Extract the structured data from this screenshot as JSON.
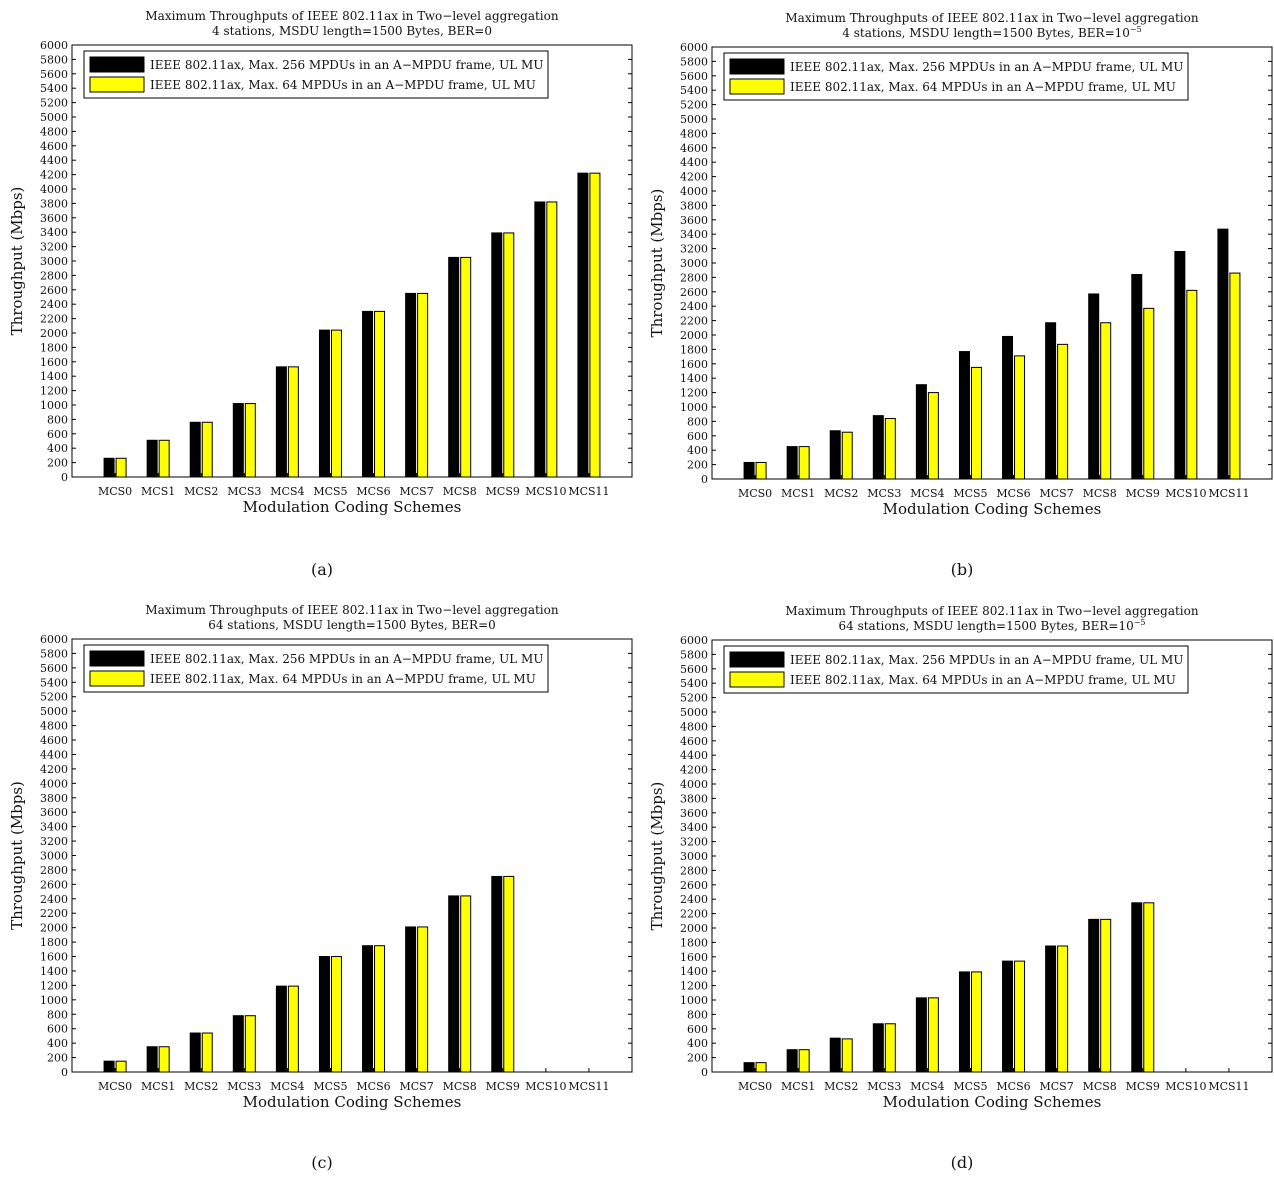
{
  "figure_label": "Maximum Throughputs of IEEE 802.11ax in Two-level aggregation figure",
  "colors": {
    "series_256": "#000000",
    "series_64": "#ffff00",
    "axes": "#000000",
    "background": "#ffffff"
  },
  "chart_data": [
    {
      "type": "bar",
      "panel": "a",
      "caption": "(a)",
      "title": "Maximum Throughputs of IEEE 802.11ax in Two−level aggregation",
      "subtitle": "4 stations, MSDU length=1500 Bytes, BER=0",
      "xlabel": "Modulation Coding Schemes",
      "ylabel": "Throughput (Mbps)",
      "ylim": [
        0,
        6000
      ],
      "yticks": [
        0,
        200,
        400,
        600,
        800,
        1000,
        1200,
        1400,
        1600,
        1800,
        2000,
        2200,
        2400,
        2600,
        2800,
        3000,
        3200,
        3400,
        3600,
        3800,
        4000,
        4200,
        4400,
        4600,
        4800,
        5000,
        5200,
        5400,
        5600,
        5800,
        6000
      ],
      "categories": [
        "MCS0",
        "MCS1",
        "MCS2",
        "MCS3",
        "MCS4",
        "MCS5",
        "MCS6",
        "MCS7",
        "MCS8",
        "MCS9",
        "MCS10",
        "MCS11"
      ],
      "legend_position": "top-left",
      "grid": false,
      "series": [
        {
          "name": "IEEE 802.11ax, Max. 256 MPDUs in an A−MPDU frame, UL MU",
          "color": "#000000",
          "values": [
            260,
            510,
            760,
            1020,
            1530,
            2040,
            2300,
            2550,
            3050,
            3390,
            3820,
            4220
          ]
        },
        {
          "name": "IEEE 802.11ax, Max. 64 MPDUs in an A−MPDU frame, UL MU",
          "color": "#ffff00",
          "values": [
            260,
            510,
            760,
            1020,
            1530,
            2040,
            2300,
            2550,
            3050,
            3390,
            3820,
            4220
          ]
        }
      ]
    },
    {
      "type": "bar",
      "panel": "b",
      "caption": "(b)",
      "title": "Maximum Throughputs of IEEE 802.11ax in Two−level aggregation",
      "subtitle": "4 stations, MSDU length=1500 Bytes, BER=10",
      "subtitle_sup": "−5",
      "xlabel": "Modulation Coding Schemes",
      "ylabel": "Throughput (Mbps)",
      "ylim": [
        0,
        6000
      ],
      "yticks": [
        0,
        200,
        400,
        600,
        800,
        1000,
        1200,
        1400,
        1600,
        1800,
        2000,
        2200,
        2400,
        2600,
        2800,
        3000,
        3200,
        3400,
        3600,
        3800,
        4000,
        4200,
        4400,
        4600,
        4800,
        5000,
        5200,
        5400,
        5600,
        5800,
        6000
      ],
      "categories": [
        "MCS0",
        "MCS1",
        "MCS2",
        "MCS3",
        "MCS4",
        "MCS5",
        "MCS6",
        "MCS7",
        "MCS8",
        "MCS9",
        "MCS10",
        "MCS11"
      ],
      "legend_position": "top-left",
      "grid": false,
      "series": [
        {
          "name": "IEEE 802.11ax, Max. 256 MPDUs in an A−MPDU frame, UL MU",
          "color": "#000000",
          "values": [
            230,
            450,
            670,
            880,
            1310,
            1770,
            1980,
            2170,
            2570,
            2840,
            3160,
            3470
          ]
        },
        {
          "name": "IEEE 802.11ax, Max. 64 MPDUs in an A−MPDU frame, UL MU",
          "color": "#ffff00",
          "values": [
            230,
            450,
            650,
            840,
            1200,
            1550,
            1710,
            1870,
            2170,
            2370,
            2620,
            2860
          ]
        }
      ]
    },
    {
      "type": "bar",
      "panel": "c",
      "caption": "(c)",
      "title": "Maximum Throughputs of IEEE 802.11ax in Two−level aggregation",
      "subtitle": "64 stations, MSDU length=1500 Bytes, BER=0",
      "xlabel": "Modulation Coding Schemes",
      "ylabel": "Throughput (Mbps)",
      "ylim": [
        0,
        6000
      ],
      "yticks": [
        0,
        200,
        400,
        600,
        800,
        1000,
        1200,
        1400,
        1600,
        1800,
        2000,
        2200,
        2400,
        2600,
        2800,
        3000,
        3200,
        3400,
        3600,
        3800,
        4000,
        4200,
        4400,
        4600,
        4800,
        5000,
        5200,
        5400,
        5600,
        5800,
        6000
      ],
      "categories": [
        "MCS0",
        "MCS1",
        "MCS2",
        "MCS3",
        "MCS4",
        "MCS5",
        "MCS6",
        "MCS7",
        "MCS8",
        "MCS9",
        "MCS10",
        "MCS11"
      ],
      "legend_position": "top-left",
      "grid": false,
      "series": [
        {
          "name": "IEEE 802.11ax, Max. 256 MPDUs in an A−MPDU frame, UL MU",
          "color": "#000000",
          "values": [
            150,
            350,
            540,
            780,
            1190,
            1600,
            1750,
            2010,
            2440,
            2710,
            null,
            null
          ]
        },
        {
          "name": "IEEE 802.11ax, Max. 64 MPDUs in an A−MPDU frame, UL MU",
          "color": "#ffff00",
          "values": [
            150,
            350,
            540,
            780,
            1190,
            1600,
            1750,
            2010,
            2440,
            2710,
            null,
            null
          ]
        }
      ]
    },
    {
      "type": "bar",
      "panel": "d",
      "caption": "(d)",
      "title": "Maximum Throughputs of IEEE 802.11ax in Two−level aggregation",
      "subtitle": "64 stations, MSDU length=1500 Bytes, BER=10",
      "subtitle_sup": "−5",
      "xlabel": "Modulation Coding Schemes",
      "ylabel": "Throughput (Mbps)",
      "ylim": [
        0,
        6000
      ],
      "yticks": [
        0,
        200,
        400,
        600,
        800,
        1000,
        1200,
        1400,
        1600,
        1800,
        2000,
        2200,
        2400,
        2600,
        2800,
        3000,
        3200,
        3400,
        3600,
        3800,
        4000,
        4200,
        4400,
        4600,
        4800,
        5000,
        5200,
        5400,
        5600,
        5800,
        6000
      ],
      "categories": [
        "MCS0",
        "MCS1",
        "MCS2",
        "MCS3",
        "MCS4",
        "MCS5",
        "MCS6",
        "MCS7",
        "MCS8",
        "MCS9",
        "MCS10",
        "MCS11"
      ],
      "legend_position": "top-left",
      "grid": false,
      "series": [
        {
          "name": "IEEE 802.11ax, Max. 256 MPDUs in an A−MPDU frame, UL MU",
          "color": "#000000",
          "values": [
            130,
            310,
            470,
            670,
            1030,
            1390,
            1540,
            1750,
            2120,
            2350,
            null,
            null
          ]
        },
        {
          "name": "IEEE 802.11ax, Max. 64 MPDUs in an A−MPDU frame, UL MU",
          "color": "#ffff00",
          "values": [
            130,
            310,
            460,
            670,
            1030,
            1390,
            1540,
            1750,
            2120,
            2350,
            null,
            null
          ]
        }
      ]
    }
  ]
}
